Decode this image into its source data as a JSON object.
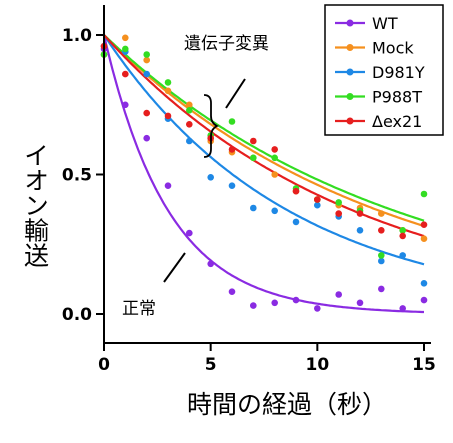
{
  "chart_data": {
    "type": "scatter",
    "xlabel": "時間の経過（秒）",
    "ylabel": "イオン輸送",
    "xlim": [
      0,
      15.5
    ],
    "ylim": [
      -0.02,
      1.05
    ],
    "xticks": [
      0,
      5,
      10,
      15
    ],
    "xtick_labels": [
      "0",
      "5",
      "10",
      "15"
    ],
    "yticks": [
      0.0,
      0.5,
      1.0
    ],
    "ytick_labels": [
      "0.0",
      "0.5",
      "1.0"
    ],
    "grid": false,
    "legend_position": "top-right",
    "annotations": {
      "mutants": "遺伝子変異",
      "normal": "正常"
    },
    "series": [
      {
        "name": "WT",
        "color": "#8a2be2",
        "x": [
          0,
          1,
          2,
          3,
          4,
          5,
          6,
          7,
          8,
          9,
          10,
          11,
          12,
          13,
          14,
          15
        ],
        "y": [
          0.95,
          0.75,
          0.63,
          0.46,
          0.29,
          0.18,
          0.08,
          0.03,
          0.04,
          0.05,
          0.02,
          0.07,
          0.04,
          0.09,
          0.02,
          0.05
        ],
        "fit_k": 0.33
      },
      {
        "name": "Mock",
        "color": "#f5901e",
        "x": [
          0,
          1,
          2,
          3,
          4,
          5,
          6,
          7,
          8,
          9,
          10,
          11,
          12,
          13,
          14,
          15
        ],
        "y": [
          0.93,
          0.99,
          0.91,
          0.8,
          0.75,
          0.62,
          0.58,
          0.56,
          0.5,
          0.44,
          0.41,
          0.39,
          0.38,
          0.36,
          0.3,
          0.27
        ],
        "fit_k": 0.077
      },
      {
        "name": "D981Y",
        "color": "#1e88e5",
        "x": [
          0,
          1,
          2,
          3,
          4,
          5,
          6,
          7,
          8,
          9,
          10,
          11,
          12,
          13,
          14,
          15
        ],
        "y": [
          0.96,
          0.94,
          0.86,
          0.7,
          0.62,
          0.49,
          0.46,
          0.38,
          0.37,
          0.33,
          0.39,
          0.35,
          0.3,
          0.19,
          0.21,
          0.11
        ],
        "fit_k": 0.115
      },
      {
        "name": "P988T",
        "color": "#33dd22",
        "x": [
          0,
          1,
          2,
          3,
          4,
          5,
          6,
          7,
          8,
          9,
          10,
          11,
          12,
          13,
          14,
          15
        ],
        "y": [
          0.93,
          0.95,
          0.93,
          0.83,
          0.73,
          0.64,
          0.69,
          0.56,
          0.56,
          0.45,
          0.41,
          0.4,
          0.37,
          0.21,
          0.3,
          0.43
        ],
        "fit_k": 0.073
      },
      {
        "name": "Δex21",
        "color": "#e61e1e",
        "x": [
          0,
          1,
          2,
          3,
          4,
          5,
          6,
          7,
          8,
          9,
          10,
          11,
          12,
          13,
          14,
          15
        ],
        "y": [
          0.96,
          0.86,
          0.72,
          0.71,
          0.68,
          0.63,
          0.59,
          0.62,
          0.59,
          0.44,
          0.41,
          0.36,
          0.36,
          0.3,
          0.28,
          0.32
        ],
        "fit_k": 0.085
      }
    ]
  }
}
